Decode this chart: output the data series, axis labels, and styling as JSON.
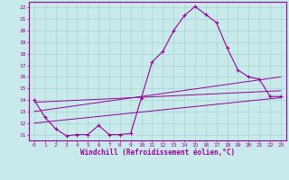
{
  "xlabel": "Windchill (Refroidissement éolien,°C)",
  "xlim": [
    -0.5,
    23.5
  ],
  "ylim": [
    10.5,
    22.5
  ],
  "xticks": [
    0,
    1,
    2,
    3,
    4,
    5,
    6,
    7,
    8,
    9,
    10,
    11,
    12,
    13,
    14,
    15,
    16,
    17,
    18,
    19,
    20,
    21,
    22,
    23
  ],
  "yticks": [
    11,
    12,
    13,
    14,
    15,
    16,
    17,
    18,
    19,
    20,
    21,
    22
  ],
  "bg_color": "#c8eaea",
  "line_color": "#990099",
  "grid_color": "#aad4d4",
  "line1_x": [
    0,
    1,
    2,
    3,
    4,
    5,
    6,
    7,
    8,
    9,
    10,
    11,
    12,
    13,
    14,
    15,
    16,
    17,
    18,
    19,
    20,
    21,
    22,
    23
  ],
  "line1_y": [
    14.0,
    12.5,
    11.5,
    10.9,
    11.0,
    11.0,
    11.8,
    11.0,
    11.0,
    11.1,
    14.2,
    17.3,
    18.2,
    20.0,
    21.3,
    22.1,
    21.4,
    20.7,
    18.5,
    16.6,
    16.0,
    15.8,
    14.3,
    14.3
  ],
  "line2_x": [
    0,
    23
  ],
  "line2_y": [
    13.8,
    14.8
  ],
  "line3_x": [
    0,
    23
  ],
  "line3_y": [
    13.0,
    16.0
  ],
  "line4_x": [
    0,
    23
  ],
  "line4_y": [
    12.0,
    14.2
  ],
  "xlabel_fontsize": 5.5,
  "tick_fontsize": 4.5
}
